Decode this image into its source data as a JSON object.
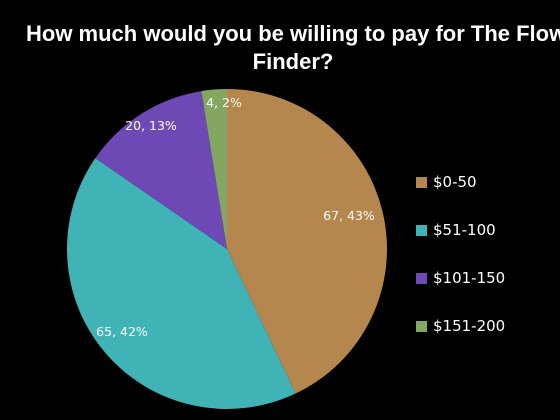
{
  "chart_data": {
    "type": "pie",
    "title": [
      "How much would you be willing to pay for The Flow",
      "Finder?"
    ],
    "categories": [
      "$0-50",
      "$51-100",
      "$101-150",
      "$151-200"
    ],
    "values": [
      67,
      65,
      20,
      4
    ],
    "data_labels": [
      "67, 43%",
      "65, 42%",
      "20, 13%",
      "4, 2%"
    ],
    "colors": [
      "#b5864d",
      "#3fb3b5",
      "#6e48b4",
      "#83a663"
    ],
    "legend_position": "right",
    "start_angle_deg": 0,
    "direction": "clockwise"
  }
}
